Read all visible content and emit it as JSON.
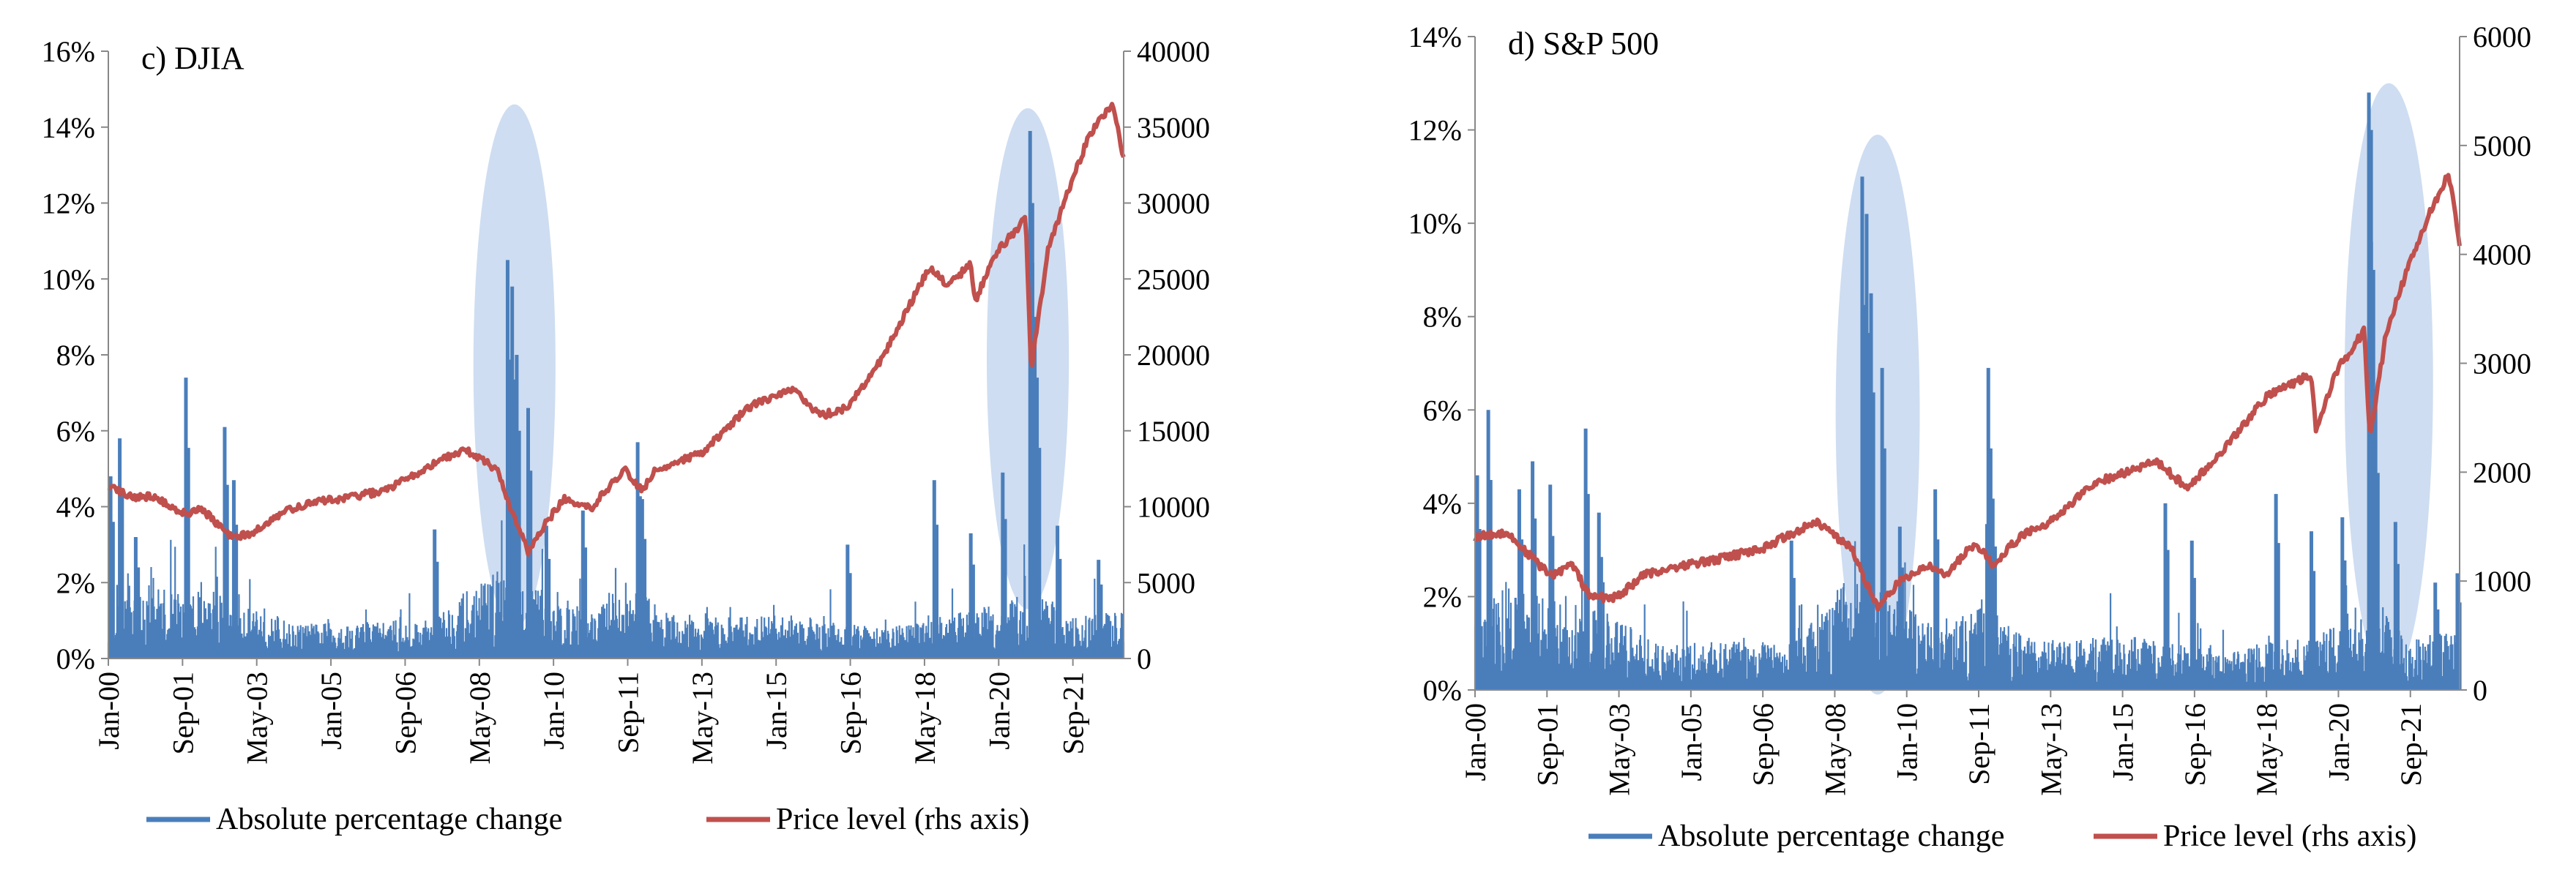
{
  "chart_data": [
    {
      "type": "line",
      "title": "c) DJIA",
      "x_ticks": [
        "Jan-00",
        "Sep-01",
        "May-03",
        "Jan-05",
        "Sep-06",
        "May-08",
        "Jan-10",
        "Sep-11",
        "May-13",
        "Jan-15",
        "Sep-16",
        "May-18",
        "Jan-20",
        "Sep-21"
      ],
      "x_range": [
        2000.0,
        2022.25
      ],
      "y_left": {
        "range": [
          0,
          16
        ],
        "ticks": [
          "0%",
          "2%",
          "4%",
          "6%",
          "8%",
          "10%",
          "12%",
          "14%",
          "16%"
        ]
      },
      "y_right": {
        "range": [
          0,
          40000
        ],
        "ticks": [
          "0",
          "5000",
          "10000",
          "15000",
          "20000",
          "25000",
          "30000",
          "35000",
          "40000"
        ]
      },
      "legend": [
        "Absolute percentage change",
        "Price level (rhs axis)"
      ],
      "colors": {
        "abs": "#4a7ebb",
        "price": "#c0504d",
        "highlight": "#c5d7ee"
      },
      "highlights": [
        {
          "x_center": 2008.9,
          "y_center_pct": 7.7,
          "x_halfwidth_years": 0.9,
          "y_halfwidth_pct": 6.9
        },
        {
          "x_center": 2020.15,
          "y_center_pct": 7.9,
          "x_halfwidth_years": 0.9,
          "y_halfwidth_pct": 6.6
        }
      ],
      "series": [
        {
          "name": "Absolute percentage change",
          "base_level": [
            [
              2000,
              1.6
            ],
            [
              2003,
              1.3
            ],
            [
              2004,
              0.7
            ],
            [
              2007,
              0.8
            ],
            [
              2008.5,
              1.8
            ],
            [
              2009.5,
              1.4
            ],
            [
              2010.5,
              1.0
            ],
            [
              2011.6,
              1.4
            ],
            [
              2012.5,
              0.8
            ],
            [
              2015,
              0.9
            ],
            [
              2017,
              0.6
            ],
            [
              2019,
              1.0
            ],
            [
              2020.1,
              1.3
            ],
            [
              2020.6,
              1.4
            ],
            [
              2021,
              0.8
            ],
            [
              2022.25,
              1.0
            ]
          ],
          "spikes": [
            [
              2000.05,
              4.8
            ],
            [
              2000.25,
              5.8
            ],
            [
              2000.6,
              3.2
            ],
            [
              2001.7,
              7.4
            ],
            [
              2002.55,
              6.1
            ],
            [
              2002.75,
              4.7
            ],
            [
              2007.15,
              3.4
            ],
            [
              2008.75,
              10.5
            ],
            [
              2008.85,
              9.8
            ],
            [
              2008.95,
              8.0
            ],
            [
              2009.2,
              6.6
            ],
            [
              2009.6,
              3.5
            ],
            [
              2010.4,
              3.9
            ],
            [
              2011.6,
              5.7
            ],
            [
              2011.7,
              4.2
            ],
            [
              2016.2,
              3.0
            ],
            [
              2018.1,
              4.7
            ],
            [
              2018.9,
              3.3
            ],
            [
              2019.6,
              4.9
            ],
            [
              2020.2,
              13.9
            ],
            [
              2020.25,
              12.0
            ],
            [
              2020.35,
              7.4
            ],
            [
              2020.8,
              3.5
            ],
            [
              2021.7,
              2.6
            ]
          ]
        },
        {
          "name": "Price level (rhs axis)",
          "points": [
            [
              2000,
              11500
            ],
            [
              2000.5,
              10600
            ],
            [
              2001,
              10700
            ],
            [
              2001.7,
              9500
            ],
            [
              2002,
              10000
            ],
            [
              2002.7,
              8000
            ],
            [
              2003.2,
              8300
            ],
            [
              2003.8,
              9600
            ],
            [
              2004.5,
              10300
            ],
            [
              2005,
              10500
            ],
            [
              2006,
              11000
            ],
            [
              2007,
              12600
            ],
            [
              2007.8,
              13800
            ],
            [
              2008.5,
              12500
            ],
            [
              2009.0,
              8500
            ],
            [
              2009.2,
              7000
            ],
            [
              2009.6,
              9000
            ],
            [
              2010,
              10500
            ],
            [
              2010.6,
              10000
            ],
            [
              2011.3,
              12500
            ],
            [
              2011.7,
              11000
            ],
            [
              2012,
              12500
            ],
            [
              2013,
              13500
            ],
            [
              2014,
              16500
            ],
            [
              2015,
              17800
            ],
            [
              2015.6,
              16000
            ],
            [
              2016.2,
              16500
            ],
            [
              2016.9,
              19500
            ],
            [
              2018.0,
              25800
            ],
            [
              2018.4,
              24500
            ],
            [
              2018.9,
              26000
            ],
            [
              2019.0,
              23500
            ],
            [
              2019.4,
              26500
            ],
            [
              2020.1,
              29000
            ],
            [
              2020.22,
              19000
            ],
            [
              2020.6,
              27000
            ],
            [
              2021,
              30500
            ],
            [
              2021.5,
              34500
            ],
            [
              2022.0,
              36500
            ],
            [
              2022.25,
              33000
            ]
          ]
        }
      ]
    },
    {
      "type": "line",
      "title": "d) S&P  500",
      "x_ticks": [
        "Jan-00",
        "Sep-01",
        "May-03",
        "Jan-05",
        "Sep-06",
        "May-08",
        "Jan-10",
        "Sep-11",
        "May-13",
        "Jan-15",
        "Sep-16",
        "May-18",
        "Jan-20",
        "Sep-21"
      ],
      "x_range": [
        2000.0,
        2022.25
      ],
      "y_left": {
        "range": [
          0,
          14
        ],
        "ticks": [
          "0%",
          "2%",
          "4%",
          "6%",
          "8%",
          "10%",
          "12%",
          "14%"
        ]
      },
      "y_right": {
        "range": [
          0,
          6000
        ],
        "ticks": [
          "0",
          "1000",
          "2000",
          "3000",
          "4000",
          "5000",
          "6000"
        ]
      },
      "legend": [
        "Absolute percentage change",
        "Price level (rhs axis)"
      ],
      "colors": {
        "abs": "#4a7ebb",
        "price": "#c0504d",
        "highlight": "#c5d7ee"
      },
      "highlights": [
        {
          "x_center": 2009.1,
          "y_center_pct": 5.9,
          "x_halfwidth_years": 0.95,
          "y_halfwidth_pct": 6.0
        },
        {
          "x_center": 2020.65,
          "y_center_pct": 6.6,
          "x_halfwidth_years": 1.0,
          "y_halfwidth_pct": 6.4
        }
      ],
      "series": [
        {
          "name": "Absolute percentage change",
          "base_level": [
            [
              2000,
              1.8
            ],
            [
              2003,
              1.3
            ],
            [
              2004,
              0.8
            ],
            [
              2007,
              0.8
            ],
            [
              2008.5,
              1.9
            ],
            [
              2009.5,
              1.5
            ],
            [
              2010.5,
              1.0
            ],
            [
              2011.6,
              1.5
            ],
            [
              2012.5,
              0.8
            ],
            [
              2015,
              0.9
            ],
            [
              2017,
              0.6
            ],
            [
              2019,
              1.0
            ],
            [
              2020.1,
              1.3
            ],
            [
              2020.6,
              1.4
            ],
            [
              2021,
              0.8
            ],
            [
              2022.25,
              1.0
            ]
          ],
          "spikes": [
            [
              2000.05,
              4.6
            ],
            [
              2000.3,
              6.0
            ],
            [
              2001.0,
              4.3
            ],
            [
              2001.3,
              4.9
            ],
            [
              2001.7,
              4.4
            ],
            [
              2002.5,
              5.6
            ],
            [
              2002.8,
              3.8
            ],
            [
              2007.15,
              3.2
            ],
            [
              2008.75,
              11.0
            ],
            [
              2008.85,
              10.2
            ],
            [
              2008.95,
              8.5
            ],
            [
              2009.2,
              6.9
            ],
            [
              2009.6,
              3.5
            ],
            [
              2010.4,
              4.3
            ],
            [
              2011.6,
              6.9
            ],
            [
              2011.7,
              4.1
            ],
            [
              2015.6,
              4.0
            ],
            [
              2016.2,
              3.2
            ],
            [
              2018.1,
              4.2
            ],
            [
              2018.9,
              3.4
            ],
            [
              2019.6,
              3.7
            ],
            [
              2020.2,
              12.8
            ],
            [
              2020.25,
              12.0
            ],
            [
              2020.35,
              6.2
            ],
            [
              2020.8,
              3.6
            ],
            [
              2021.7,
              2.3
            ],
            [
              2022.2,
              2.5
            ]
          ]
        },
        {
          "name": "Price level (rhs axis)",
          "points": [
            [
              2000,
              1400
            ],
            [
              2000.7,
              1450
            ],
            [
              2001.2,
              1250
            ],
            [
              2001.7,
              1050
            ],
            [
              2002.2,
              1150
            ],
            [
              2002.6,
              850
            ],
            [
              2003.2,
              850
            ],
            [
              2003.8,
              1050
            ],
            [
              2004.5,
              1130
            ],
            [
              2005.5,
              1200
            ],
            [
              2006.5,
              1300
            ],
            [
              2007.7,
              1550
            ],
            [
              2008.5,
              1300
            ],
            [
              2009.1,
              750
            ],
            [
              2009.6,
              1000
            ],
            [
              2010.3,
              1150
            ],
            [
              2010.6,
              1050
            ],
            [
              2011.3,
              1350
            ],
            [
              2011.7,
              1150
            ],
            [
              2012.3,
              1400
            ],
            [
              2013,
              1550
            ],
            [
              2014,
              1900
            ],
            [
              2015.4,
              2100
            ],
            [
              2016.1,
              1850
            ],
            [
              2016.9,
              2200
            ],
            [
              2017.9,
              2700
            ],
            [
              2018.9,
              2900
            ],
            [
              2019.0,
              2400
            ],
            [
              2019.5,
              2950
            ],
            [
              2020.1,
              3300
            ],
            [
              2020.22,
              2300
            ],
            [
              2020.6,
              3300
            ],
            [
              2021.1,
              3900
            ],
            [
              2021.6,
              4400
            ],
            [
              2022.0,
              4750
            ],
            [
              2022.25,
              4100
            ]
          ]
        }
      ]
    }
  ]
}
